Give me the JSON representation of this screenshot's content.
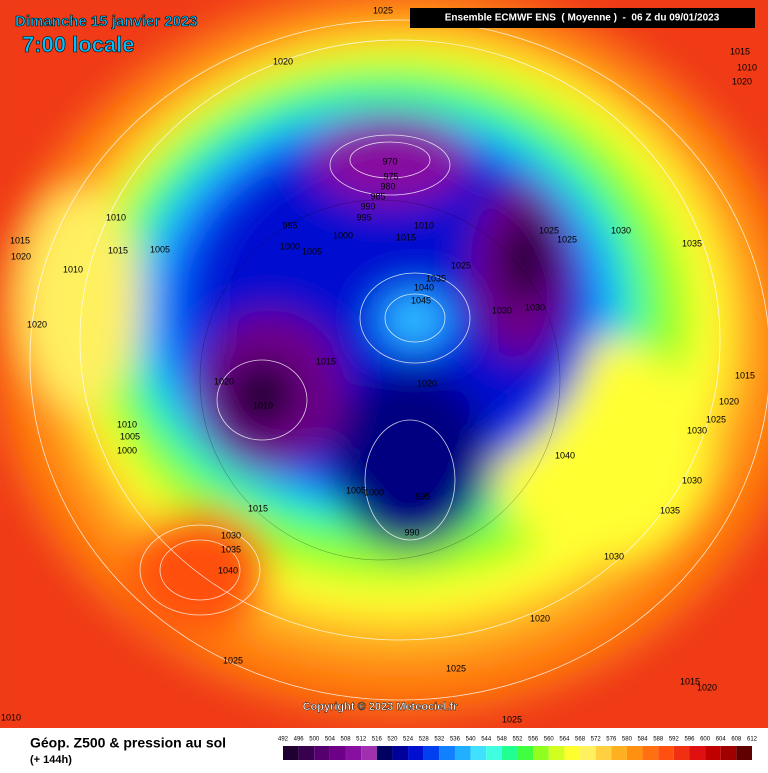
{
  "header": {
    "title": "Dimanche 15 janvier 2023",
    "time": "7:00 locale",
    "model": "Ensemble ECMWF ENS  ( Moyenne )  -  06 Z du 09/01/2023"
  },
  "copyright": "Copyright © 2023 Meteociel.fr",
  "footer": {
    "title": "Géop. Z500 & pression au sol",
    "lead": "(+ 144h)"
  },
  "legend": {
    "ticks": [
      492,
      496,
      500,
      504,
      508,
      512,
      516,
      520,
      524,
      528,
      532,
      536,
      540,
      544,
      548,
      552,
      556,
      560,
      564,
      568,
      572,
      576,
      580,
      584,
      588,
      592,
      596,
      600,
      604,
      608,
      612
    ],
    "colors": [
      "#200030",
      "#3a0050",
      "#560070",
      "#6e0088",
      "#8810a0",
      "#a030b0",
      "#000060",
      "#00009a",
      "#0010d0",
      "#0040f0",
      "#1080ff",
      "#20b0ff",
      "#40e0ff",
      "#40ffe0",
      "#20ff90",
      "#40ff40",
      "#90ff20",
      "#d0ff20",
      "#ffff30",
      "#fff060",
      "#ffd040",
      "#ffb020",
      "#ff9010",
      "#ff7010",
      "#ff5010",
      "#f03010",
      "#e01010",
      "#c00000",
      "#a00000",
      "#600000"
    ]
  },
  "isobar_labels": [
    "970",
    "975",
    "980",
    "985",
    "990",
    "995",
    "1000",
    "1010",
    "1015",
    "1025",
    "1035",
    "1040",
    "1045",
    "1020",
    "1010",
    "1020",
    "1015",
    "995",
    "990",
    "1000",
    "1005",
    "1015",
    "1030",
    "1035",
    "1040",
    "1025",
    "1025",
    "1025",
    "1020",
    "1030",
    "1035",
    "1030",
    "1040",
    "1025",
    "1025",
    "1030",
    "1035",
    "1030",
    "1030",
    "1020",
    "1025",
    "1010",
    "1015",
    "1020",
    "1005",
    "1015",
    "1010",
    "1020",
    "1010",
    "1005",
    "1000",
    "995",
    "1000",
    "1005",
    "1010",
    "1015",
    "1020",
    "1015",
    "1020",
    "1025",
    "1030",
    "1015",
    "1020",
    "1010"
  ]
}
